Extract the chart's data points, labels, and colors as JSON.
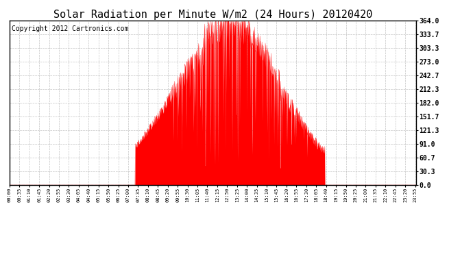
{
  "title": "Solar Radiation per Minute W/m2 (24 Hours) 20120420",
  "copyright_text": "Copyright 2012 Cartronics.com",
  "yticks": [
    0.0,
    30.3,
    60.7,
    91.0,
    121.3,
    151.7,
    182.0,
    212.3,
    242.7,
    273.0,
    303.3,
    333.7,
    364.0
  ],
  "ylim": [
    0,
    364.0
  ],
  "fill_color": "#FF0000",
  "line_color": "#FF0000",
  "background_color": "#FFFFFF",
  "grid_color": "#AAAAAA",
  "border_color": "#000000",
  "dashed_line_color": "#FF0000",
  "title_fontsize": 11,
  "copyright_fontsize": 7,
  "xtick_interval": 35
}
